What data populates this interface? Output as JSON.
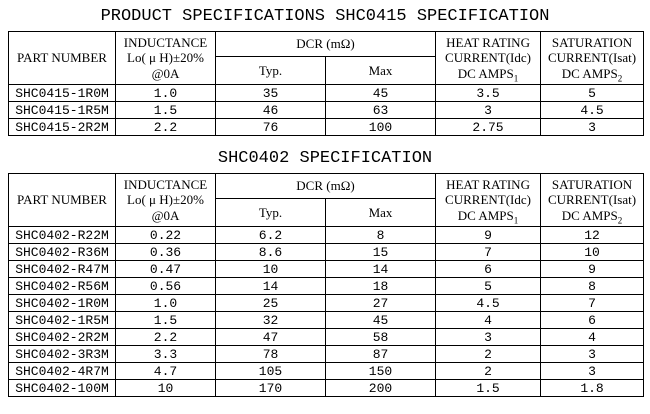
{
  "page": {
    "title_main": "PRODUCT SPECIFICATIONS SHC0415 SPECIFICATION",
    "title_second": "SHC0402 SPECIFICATION"
  },
  "column_headers": {
    "part_number": "PART NUMBER",
    "inductance": {
      "line1": "INDUCTANCE",
      "line2": "Lo( μ H)±20%",
      "line3": "@0A"
    },
    "dcr_group": "DCR (mΩ)",
    "dcr_typ": "Typ.",
    "dcr_max": "Max",
    "heat_rating": {
      "line1": "HEAT RATING",
      "line2": "CURRENT(Idc)",
      "line3": "DC AMPS",
      "sub": "1"
    },
    "saturation": {
      "line1": "SATURATION",
      "line2": "CURRENT(Isat)",
      "line3": "DC AMPS",
      "sub": "2"
    }
  },
  "spec0415": {
    "rows": [
      [
        "SHC0415-1R0M",
        "1.0",
        "35",
        "45",
        "3.5",
        "5"
      ],
      [
        "SHC0415-1R5M",
        "1.5",
        "46",
        "63",
        "3",
        "4.5"
      ],
      [
        "SHC0415-2R2M",
        "2.2",
        "76",
        "100",
        "2.75",
        "3"
      ]
    ]
  },
  "spec0402": {
    "rows": [
      [
        "SHC0402-R22M",
        "0.22",
        "6.2",
        "8",
        "9",
        "12"
      ],
      [
        "SHC0402-R36M",
        "0.36",
        "8.6",
        "15",
        "7",
        "10"
      ],
      [
        "SHC0402-R47M",
        "0.47",
        "10",
        "14",
        "6",
        "9"
      ],
      [
        "SHC0402-R56M",
        "0.56",
        "14",
        "18",
        "5",
        "8"
      ],
      [
        "SHC0402-1R0M",
        "1.0",
        "25",
        "27",
        "4.5",
        "7"
      ],
      [
        "SHC0402-1R5M",
        "1.5",
        "32",
        "45",
        "4",
        "6"
      ],
      [
        "SHC0402-2R2M",
        "2.2",
        "47",
        "58",
        "3",
        "4"
      ],
      [
        "SHC0402-3R3M",
        "3.3",
        "78",
        "87",
        "2",
        "3"
      ],
      [
        "SHC0402-4R7M",
        "4.7",
        "105",
        "150",
        "2",
        "3"
      ],
      [
        "SHC0402-100M",
        "10",
        "170",
        "200",
        "1.5",
        "1.8"
      ]
    ]
  },
  "colors": {
    "text": "#000000",
    "background": "#ffffff",
    "border": "#000000"
  }
}
